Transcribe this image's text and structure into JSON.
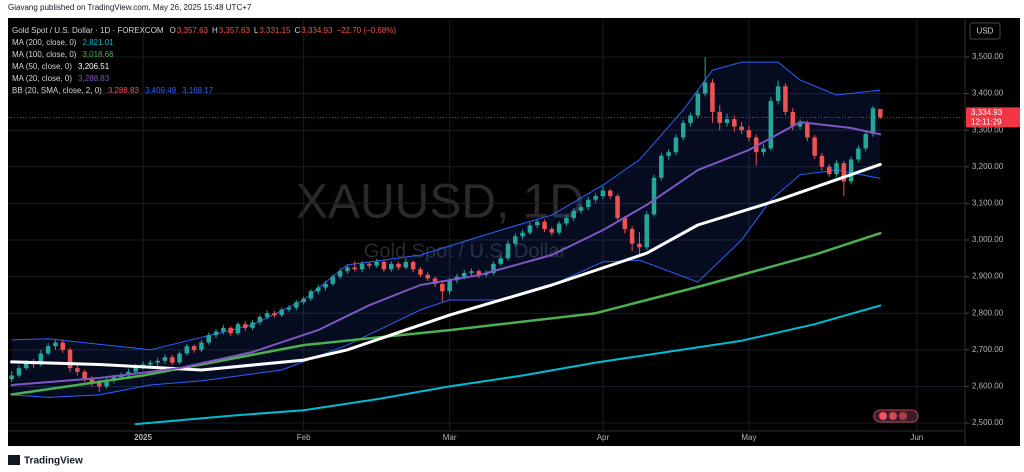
{
  "header": {
    "byline": "Giavang published on TradingView.com, May 26, 2025 15:48 UTC+7"
  },
  "chart_data": {
    "type": "candlestick",
    "symbol_line": "Gold Spot / U.S. Dollar · 1D · FOREXCOM",
    "ohlc_labels": [
      {
        "key": "O",
        "value": "3,357.63"
      },
      {
        "key": "H",
        "value": "3,357.63"
      },
      {
        "key": "L",
        "value": "3,331.15"
      },
      {
        "key": "C",
        "value": "3,334.93"
      }
    ],
    "change": "−22.70 (−0.68%)",
    "watermark": "XAUUSD, 1D",
    "watermark_subtitle": "Gold Spot / U.S. Dollar",
    "currency": "USD",
    "up_color": "#26a69a",
    "down_color": "#ef5350",
    "candles": [
      [
        2620,
        2642,
        2612,
        2630
      ],
      [
        2630,
        2658,
        2625,
        2650
      ],
      [
        2650,
        2672,
        2645,
        2665
      ],
      [
        2665,
        2675,
        2650,
        2660
      ],
      [
        2660,
        2700,
        2655,
        2690
      ],
      [
        2690,
        2718,
        2684,
        2710
      ],
      [
        2710,
        2726,
        2700,
        2720
      ],
      [
        2720,
        2728,
        2692,
        2700
      ],
      [
        2700,
        2705,
        2640,
        2650
      ],
      [
        2650,
        2660,
        2630,
        2640
      ],
      [
        2640,
        2646,
        2612,
        2620
      ],
      [
        2620,
        2628,
        2600,
        2610
      ],
      [
        2610,
        2618,
        2585,
        2600
      ],
      [
        2600,
        2622,
        2594,
        2615
      ],
      [
        2615,
        2632,
        2608,
        2625
      ],
      [
        2625,
        2638,
        2618,
        2630
      ],
      [
        2630,
        2648,
        2620,
        2640
      ],
      [
        2640,
        2662,
        2634,
        2655
      ],
      [
        2655,
        2668,
        2646,
        2660
      ],
      [
        2660,
        2672,
        2652,
        2665
      ],
      [
        2665,
        2678,
        2656,
        2670
      ],
      [
        2670,
        2688,
        2662,
        2680
      ],
      [
        2680,
        2686,
        2658,
        2665
      ],
      [
        2665,
        2696,
        2660,
        2690
      ],
      [
        2690,
        2716,
        2684,
        2710
      ],
      [
        2710,
        2714,
        2692,
        2700
      ],
      [
        2700,
        2726,
        2694,
        2720
      ],
      [
        2720,
        2746,
        2714,
        2740
      ],
      [
        2740,
        2756,
        2732,
        2750
      ],
      [
        2750,
        2768,
        2742,
        2760
      ],
      [
        2760,
        2764,
        2738,
        2745
      ],
      [
        2745,
        2776,
        2740,
        2770
      ],
      [
        2770,
        2778,
        2752,
        2760
      ],
      [
        2760,
        2782,
        2754,
        2775
      ],
      [
        2775,
        2796,
        2768,
        2790
      ],
      [
        2790,
        2808,
        2784,
        2800
      ],
      [
        2800,
        2806,
        2788,
        2795
      ],
      [
        2795,
        2816,
        2790,
        2810
      ],
      [
        2810,
        2822,
        2804,
        2815
      ],
      [
        2815,
        2836,
        2808,
        2830
      ],
      [
        2830,
        2846,
        2824,
        2840
      ],
      [
        2840,
        2866,
        2834,
        2860
      ],
      [
        2860,
        2878,
        2852,
        2870
      ],
      [
        2870,
        2888,
        2862,
        2880
      ],
      [
        2880,
        2906,
        2874,
        2900
      ],
      [
        2900,
        2922,
        2894,
        2915
      ],
      [
        2915,
        2932,
        2908,
        2925
      ],
      [
        2925,
        2942,
        2914,
        2920
      ],
      [
        2920,
        2942,
        2912,
        2935
      ],
      [
        2935,
        2940,
        2922,
        2930
      ],
      [
        2930,
        2948,
        2924,
        2940
      ],
      [
        2940,
        2946,
        2912,
        2920
      ],
      [
        2920,
        2942,
        2914,
        2935
      ],
      [
        2935,
        2940,
        2918,
        2925
      ],
      [
        2925,
        2950,
        2920,
        2940
      ],
      [
        2940,
        2944,
        2912,
        2920
      ],
      [
        2920,
        2926,
        2898,
        2905
      ],
      [
        2905,
        2912,
        2888,
        2895
      ],
      [
        2895,
        2900,
        2872,
        2880
      ],
      [
        2880,
        2886,
        2832,
        2860
      ],
      [
        2860,
        2896,
        2852,
        2890
      ],
      [
        2890,
        2908,
        2882,
        2900
      ],
      [
        2900,
        2918,
        2892,
        2910
      ],
      [
        2910,
        2922,
        2902,
        2915
      ],
      [
        2915,
        2920,
        2896,
        2905
      ],
      [
        2905,
        2918,
        2898,
        2910
      ],
      [
        2910,
        2942,
        2904,
        2935
      ],
      [
        2935,
        2958,
        2928,
        2950
      ],
      [
        2950,
        2998,
        2944,
        2990
      ],
      [
        2990,
        3018,
        2982,
        3010
      ],
      [
        3010,
        3028,
        3002,
        3020
      ],
      [
        3020,
        3048,
        3014,
        3040
      ],
      [
        3040,
        3058,
        3032,
        3050
      ],
      [
        3050,
        3056,
        3022,
        3030
      ],
      [
        3030,
        3036,
        3012,
        3020
      ],
      [
        3020,
        3052,
        3014,
        3045
      ],
      [
        3045,
        3068,
        3038,
        3060
      ],
      [
        3060,
        3088,
        3052,
        3080
      ],
      [
        3080,
        3098,
        3072,
        3090
      ],
      [
        3090,
        3118,
        3082,
        3110
      ],
      [
        3110,
        3128,
        3102,
        3120
      ],
      [
        3120,
        3148,
        3112,
        3135
      ],
      [
        3135,
        3140,
        3112,
        3120
      ],
      [
        3120,
        3126,
        3054,
        3060
      ],
      [
        3060,
        3066,
        3018,
        3030
      ],
      [
        3030,
        3038,
        2970,
        2990
      ],
      [
        2990,
        3022,
        2956,
        2980
      ],
      [
        2980,
        3080,
        2972,
        3070
      ],
      [
        3070,
        3178,
        3064,
        3170
      ],
      [
        3170,
        3238,
        3162,
        3230
      ],
      [
        3230,
        3248,
        3220,
        3240
      ],
      [
        3240,
        3288,
        3232,
        3280
      ],
      [
        3280,
        3328,
        3272,
        3320
      ],
      [
        3320,
        3348,
        3310,
        3340
      ],
      [
        3340,
        3408,
        3332,
        3400
      ],
      [
        3400,
        3500,
        3392,
        3430
      ],
      [
        3430,
        3440,
        3320,
        3350
      ],
      [
        3350,
        3368,
        3300,
        3320
      ],
      [
        3320,
        3345,
        3310,
        3330
      ],
      [
        3330,
        3340,
        3296,
        3310
      ],
      [
        3310,
        3322,
        3290,
        3300
      ],
      [
        3300,
        3312,
        3270,
        3280
      ],
      [
        3280,
        3288,
        3204,
        3240
      ],
      [
        3240,
        3262,
        3230,
        3250
      ],
      [
        3250,
        3390,
        3244,
        3380
      ],
      [
        3380,
        3436,
        3370,
        3420
      ],
      [
        3420,
        3428,
        3340,
        3350
      ],
      [
        3350,
        3360,
        3300,
        3310
      ],
      [
        3310,
        3330,
        3302,
        3320
      ],
      [
        3320,
        3326,
        3270,
        3280
      ],
      [
        3280,
        3286,
        3222,
        3230
      ],
      [
        3230,
        3238,
        3190,
        3200
      ],
      [
        3200,
        3208,
        3172,
        3180
      ],
      [
        3180,
        3218,
        3172,
        3210
      ],
      [
        3210,
        3216,
        3120,
        3160
      ],
      [
        3160,
        3228,
        3152,
        3220
      ],
      [
        3220,
        3258,
        3212,
        3250
      ],
      [
        3250,
        3298,
        3242,
        3290
      ],
      [
        3290,
        3366,
        3282,
        3360
      ],
      [
        3357.63,
        3357.63,
        3331.15,
        3334.93
      ]
    ],
    "xlim": [
      -0.5,
      130.6
    ],
    "xticks": [
      {
        "value": 18,
        "label": "2025"
      },
      {
        "value": 40,
        "label": "Feb"
      },
      {
        "value": 60,
        "label": "Mar"
      },
      {
        "value": 81,
        "label": "Apr"
      },
      {
        "value": 101,
        "label": "May"
      },
      {
        "value": 124,
        "label": "Jun"
      }
    ],
    "ylim": [
      2481,
      3601
    ],
    "yticks": [
      {
        "value": 2500,
        "label": "2,500.00"
      },
      {
        "value": 2600,
        "label": "2,600.00"
      },
      {
        "value": 2700,
        "label": "2,700.00"
      },
      {
        "value": 2800,
        "label": "2,800.00"
      },
      {
        "value": 2900,
        "label": "2,900.00"
      },
      {
        "value": 3000,
        "label": "3,000.00"
      },
      {
        "value": 3100,
        "label": "3,100.00"
      },
      {
        "value": 3200,
        "label": "3,200.00"
      },
      {
        "value": 3300,
        "label": "3,300.00"
      },
      {
        "value": 3400,
        "label": "3,400.00"
      },
      {
        "value": 3500,
        "label": "3,500.00"
      }
    ],
    "grid": true,
    "series": [
      {
        "name": "MA (200, close, 0)",
        "legend_value": "2,821.01",
        "color": "#00bcd4",
        "width": 2,
        "x": [
          17,
          30,
          40,
          50,
          60,
          70,
          80,
          90,
          100,
          110,
          119
        ],
        "values": [
          2497,
          2520,
          2535,
          2565,
          2600,
          2630,
          2665,
          2695,
          2725,
          2770,
          2821.01
        ]
      },
      {
        "name": "MA (100, close, 0)",
        "legend_value": "3,018.66",
        "color": "#4caf50",
        "width": 2.5,
        "x": [
          0,
          18,
          40,
          60,
          80,
          95,
          110,
          119
        ],
        "values": [
          2578,
          2630,
          2713,
          2754,
          2800,
          2877,
          2960,
          3018.66
        ]
      },
      {
        "name": "MA (50, close, 0)",
        "legend_value": "3,206.51",
        "color": "#ffffff",
        "width": 3,
        "x": [
          0,
          12,
          26,
          40,
          46,
          60,
          74,
          87,
          94,
          105,
          119
        ],
        "values": [
          2667,
          2660,
          2645,
          2672,
          2700,
          2795,
          2877,
          2964,
          3041,
          3109,
          3206.51
        ]
      },
      {
        "name": "MA (20, close, 0)",
        "legend_value": "3,288.83",
        "color": "#7e57c2",
        "width": 2,
        "x": [
          0,
          12,
          23,
          33,
          42,
          49,
          56,
          64,
          74,
          81,
          87,
          94,
          101,
          108,
          115,
          119
        ],
        "values": [
          2604,
          2623,
          2650,
          2694,
          2754,
          2822,
          2877,
          2904,
          2959,
          3027,
          3096,
          3191,
          3246,
          3322,
          3306,
          3288.83
        ]
      }
    ],
    "bands": {
      "name": "BB (20, SMA, close, 2, 0)",
      "legend_values": [
        "3,288.83",
        "3,409.49",
        "3,168.17"
      ],
      "legend_colors": [
        "#f7525f",
        "#2962ff",
        "#2962ff"
      ],
      "color": "#2962ff",
      "upper": {
        "x": [
          0,
          5,
          19,
          33,
          40,
          46,
          56,
          67,
          74,
          81,
          86,
          92,
          96,
          100,
          105,
          108,
          113,
          119
        ],
        "values": [
          2727,
          2730,
          2700,
          2768,
          2836,
          2932,
          2959,
          3027,
          3068,
          3150,
          3219,
          3355,
          3464,
          3486,
          3486,
          3437,
          3396,
          3409.49
        ]
      },
      "lower": {
        "x": [
          0,
          5,
          12,
          19,
          26,
          37,
          46,
          56,
          60,
          67,
          74,
          81,
          86,
          94,
          100,
          104,
          108,
          113,
          119
        ],
        "values": [
          2577,
          2570,
          2577,
          2604,
          2615,
          2645,
          2713,
          2809,
          2836,
          2836,
          2877,
          2940,
          2945,
          2885,
          3000,
          3109,
          3178,
          3191,
          3168.17
        ]
      }
    },
    "last_price": {
      "value": 3334.93,
      "label": "3,334.93",
      "countdown": "12:11:29",
      "color": "#f23645"
    }
  },
  "footer": {
    "brand": "TradingView"
  }
}
